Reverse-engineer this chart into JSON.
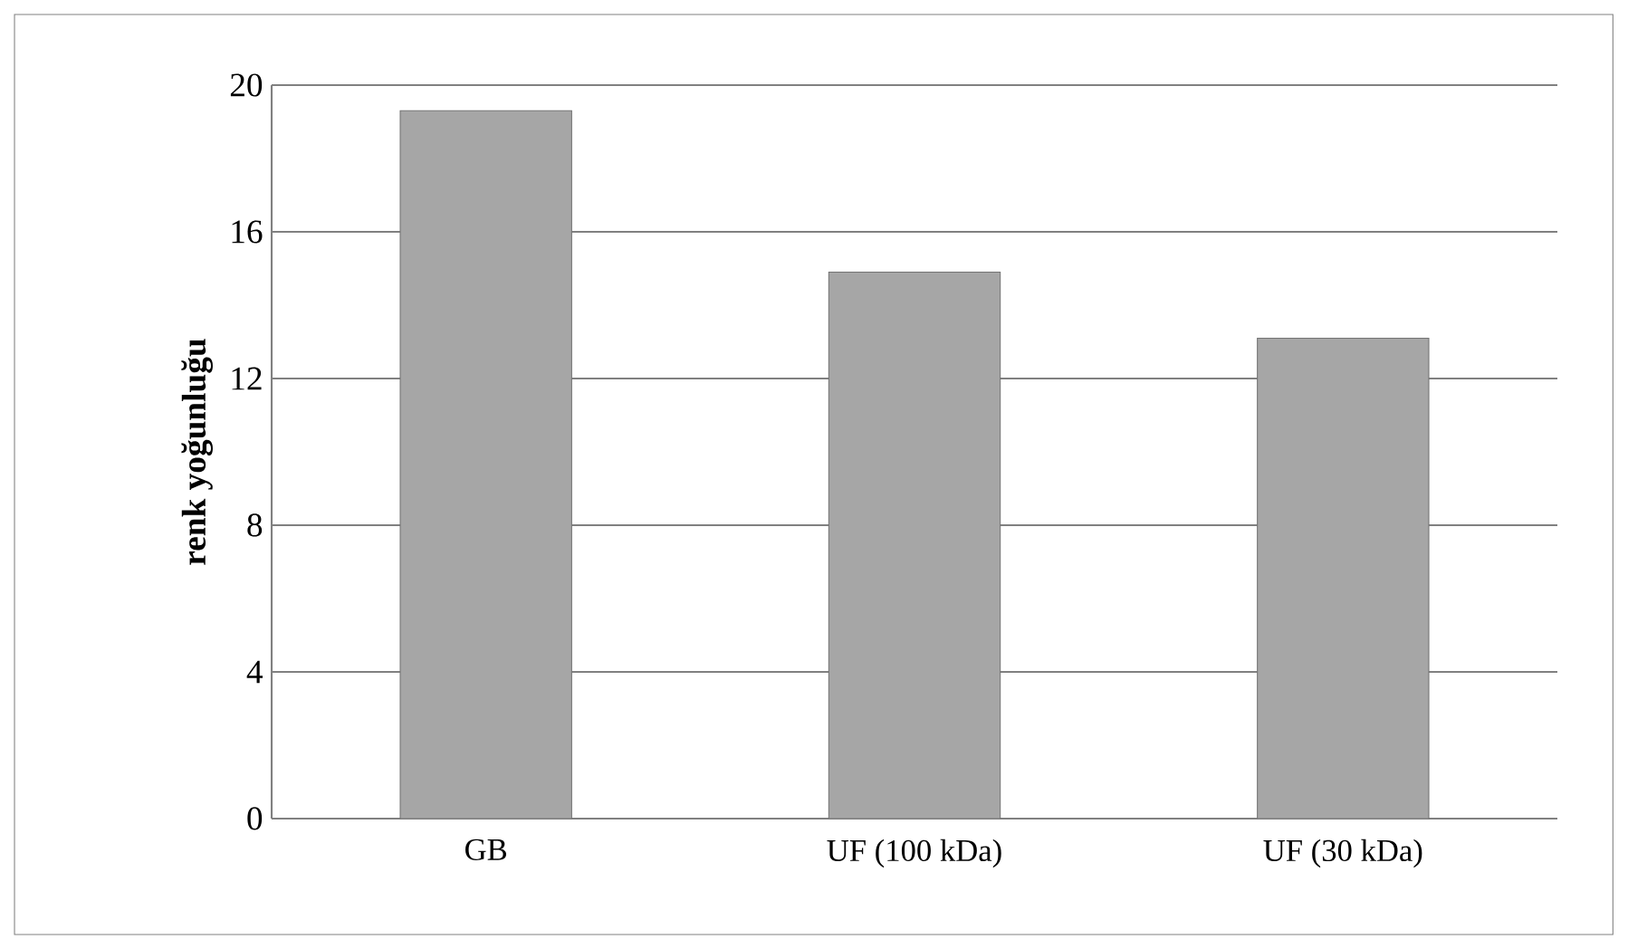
{
  "chart_data": {
    "type": "bar",
    "ylabel": "renk yoğunluğu",
    "categories": [
      "GB",
      "UF (100 kDa)",
      "UF (30 kDa)"
    ],
    "values": [
      19.3,
      14.9,
      13.1
    ],
    "color": "#a6a6a6",
    "ylim": [
      0,
      20
    ],
    "yticks": [
      0,
      4,
      8,
      12,
      16,
      20
    ],
    "grid": "y"
  }
}
